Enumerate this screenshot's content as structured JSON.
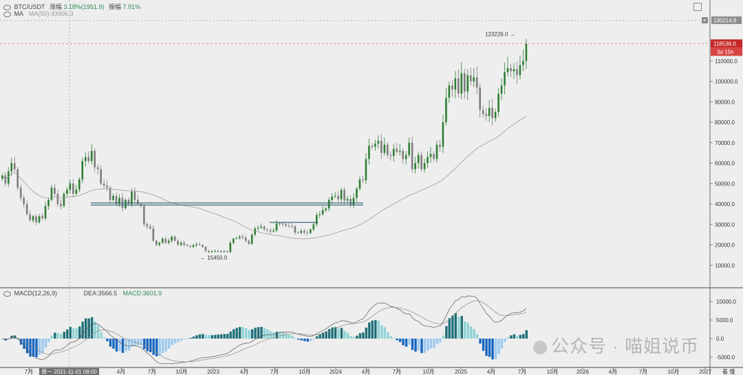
{
  "header": {
    "symbol": "BTC/USDT",
    "change_label": "涨幅",
    "change_value": "3.18%(1951.9)",
    "amplitude_label": "振幅",
    "amplitude_value": "7.91%",
    "ma_label": "MA",
    "ma_value": "MA(50):43906.3"
  },
  "macd_header": {
    "title": "MACD(12,26,9)",
    "dea": "DEA:3566.5",
    "macd": "MACD:3601.9"
  },
  "price_axis": {
    "ticks": [
      "110000.0",
      "100000.0",
      "90000.0",
      "80000.0",
      "70000.0",
      "60000.0",
      "50000.0",
      "40000.0",
      "30000.0",
      "20000.0",
      "10000.0"
    ],
    "top_label": "130214.8",
    "current_price": "118538.0",
    "countdown": "3d 15h"
  },
  "macd_axis": {
    "ticks": [
      "10000.0",
      "5000.0",
      "0.0",
      "-5000.0"
    ]
  },
  "time_axis": {
    "labels": [
      "7月",
      "4月",
      "7月",
      "10月",
      "2023",
      "4月",
      "7月",
      "10月",
      "2024",
      "4月",
      "7月",
      "10月",
      "2025",
      "4月",
      "7月",
      "10月",
      "2026",
      "4月",
      "7月",
      "10月",
      "2027"
    ],
    "crosshair_label": "周一 2021-11-01 08:00",
    "right_label": "看 懂"
  },
  "annotations": {
    "high": "123226.0",
    "low": "15450.0"
  },
  "watermark": "公众号 · 喵姐说币",
  "colors": {
    "up": "#2e7d32",
    "down": "#7d7d7d",
    "ma": "#9a9a9a",
    "price_line": "#e57373",
    "price_badge": "#c62828",
    "hist_pos_strong": "#1f6f78",
    "hist_pos_weak": "#8fd3d6",
    "hist_neg_strong": "#1565c0",
    "hist_neg_weak": "#9ec9ee"
  },
  "chart_data": {
    "type": "candlestick",
    "interval": "weekly",
    "y_range": [
      0,
      130214.8
    ],
    "closes": [
      54000,
      50000,
      56000,
      60000,
      57000,
      48000,
      43000,
      40000,
      35000,
      32000,
      34000,
      31000,
      34000,
      33000,
      39000,
      42000,
      48000,
      45000,
      40000,
      39000,
      45000,
      47000,
      50000,
      45000,
      47000,
      52000,
      61000,
      63000,
      61000,
      66000,
      58000,
      57000,
      50000,
      49000,
      48000,
      42000,
      44000,
      40000,
      43000,
      38000,
      42000,
      40000,
      46000,
      42000,
      40000,
      39000,
      30000,
      29000,
      28000,
      22000,
      20000,
      21000,
      23000,
      21000,
      22000,
      24000,
      22000,
      20000,
      21000,
      20000,
      19500,
      19000,
      19800,
      20300,
      20000,
      19000,
      17000,
      16500,
      16800,
      16900,
      17000,
      16600,
      16800,
      16500,
      21000,
      23000,
      23300,
      24000,
      23500,
      22000,
      20500,
      25000,
      28000,
      28400,
      29000,
      27500,
      27200,
      26500,
      27000,
      30400,
      30500,
      30000,
      29300,
      29200,
      29100,
      26000,
      25900,
      26800,
      26000,
      25800,
      27500,
      30000,
      34600,
      35000,
      37000,
      37800,
      42000,
      43700,
      44000,
      42300,
      46900,
      41600,
      42500,
      39500,
      43000,
      47500,
      52000,
      51600,
      62000,
      68500,
      68000,
      69500,
      71000,
      65000,
      69000,
      64000,
      63500,
      67000,
      65500,
      66000,
      62000,
      64000,
      70000,
      57000,
      60000,
      64000,
      57000,
      60000,
      63000,
      64500,
      62000,
      69000,
      68000,
      80000,
      92000,
      98000,
      96000,
      101500,
      94000,
      104000,
      95000,
      103000,
      100000,
      102000,
      97000,
      86000,
      84000,
      83000,
      87000,
      82000,
      85000,
      94000,
      98000,
      104500,
      106500,
      105000,
      106000,
      103000,
      108000,
      110000,
      118500
    ],
    "ma_period": 50,
    "high_marker": 123226.0,
    "low_marker": 15450.0,
    "current_price": 118538.0,
    "horizontal_lines": [
      40500,
      39500,
      31000
    ],
    "macd": {
      "params": [
        12,
        26,
        9
      ],
      "dea_last": 3566.5,
      "macd_last": 3601.9,
      "y_range": [
        -7000,
        12000
      ]
    }
  }
}
